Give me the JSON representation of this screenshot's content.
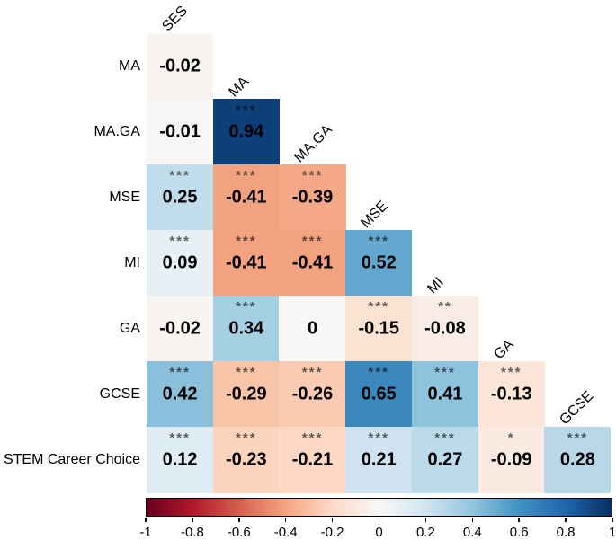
{
  "chart_data": {
    "type": "heatmap",
    "subtype": "lower-triangle correlation matrix with significance stars",
    "title": "",
    "variables": [
      "SES",
      "MA",
      "MA.GA",
      "MSE",
      "MI",
      "GA",
      "GCSE",
      "STEM Career Choice"
    ],
    "column_headers": [
      "SES",
      "MA",
      "MA.GA",
      "MSE",
      "MI",
      "GA",
      "GCSE"
    ],
    "rows": [
      {
        "label": "MA",
        "cells": [
          {
            "col": "SES",
            "value": -0.02,
            "display": "-0.02",
            "stars": ""
          }
        ]
      },
      {
        "label": "MA.GA",
        "cells": [
          {
            "col": "SES",
            "value": -0.01,
            "display": "-0.01",
            "stars": ""
          },
          {
            "col": "MA",
            "value": 0.94,
            "display": "0.94",
            "stars": "***"
          }
        ]
      },
      {
        "label": "MSE",
        "cells": [
          {
            "col": "SES",
            "value": 0.25,
            "display": "0.25",
            "stars": "***"
          },
          {
            "col": "MA",
            "value": -0.41,
            "display": "-0.41",
            "stars": "***"
          },
          {
            "col": "MA.GA",
            "value": -0.39,
            "display": "-0.39",
            "stars": "***"
          }
        ]
      },
      {
        "label": "MI",
        "cells": [
          {
            "col": "SES",
            "value": 0.09,
            "display": "0.09",
            "stars": "***"
          },
          {
            "col": "MA",
            "value": -0.41,
            "display": "-0.41",
            "stars": "***"
          },
          {
            "col": "MA.GA",
            "value": -0.41,
            "display": "-0.41",
            "stars": "***"
          },
          {
            "col": "MSE",
            "value": 0.52,
            "display": "0.52",
            "stars": "***"
          }
        ]
      },
      {
        "label": "GA",
        "cells": [
          {
            "col": "SES",
            "value": -0.02,
            "display": "-0.02",
            "stars": ""
          },
          {
            "col": "MA",
            "value": 0.34,
            "display": "0.34",
            "stars": "***"
          },
          {
            "col": "MA.GA",
            "value": 0,
            "display": "0",
            "stars": ""
          },
          {
            "col": "MSE",
            "value": -0.15,
            "display": "-0.15",
            "stars": "***"
          },
          {
            "col": "MI",
            "value": -0.08,
            "display": "-0.08",
            "stars": "**"
          }
        ]
      },
      {
        "label": "GCSE",
        "cells": [
          {
            "col": "SES",
            "value": 0.42,
            "display": "0.42",
            "stars": "***"
          },
          {
            "col": "MA",
            "value": -0.29,
            "display": "-0.29",
            "stars": "***"
          },
          {
            "col": "MA.GA",
            "value": -0.26,
            "display": "-0.26",
            "stars": "***"
          },
          {
            "col": "MSE",
            "value": 0.65,
            "display": "0.65",
            "stars": "***"
          },
          {
            "col": "MI",
            "value": 0.41,
            "display": "0.41",
            "stars": "***"
          },
          {
            "col": "GA",
            "value": -0.13,
            "display": "-0.13",
            "stars": "***"
          }
        ]
      },
      {
        "label": "STEM Career Choice",
        "cells": [
          {
            "col": "SES",
            "value": 0.12,
            "display": "0.12",
            "stars": "***"
          },
          {
            "col": "MA",
            "value": -0.23,
            "display": "-0.23",
            "stars": "***"
          },
          {
            "col": "MA.GA",
            "value": -0.21,
            "display": "-0.21",
            "stars": "***"
          },
          {
            "col": "MSE",
            "value": 0.21,
            "display": "0.21",
            "stars": "***"
          },
          {
            "col": "MI",
            "value": 0.27,
            "display": "0.27",
            "stars": "***"
          },
          {
            "col": "GA",
            "value": -0.09,
            "display": "-0.09",
            "stars": "*"
          },
          {
            "col": "GCSE",
            "value": 0.28,
            "display": "0.28",
            "stars": "***"
          }
        ]
      }
    ],
    "colorbar": {
      "orientation": "horizontal",
      "position": "bottom",
      "min": -1,
      "max": 1,
      "tick_labels": [
        "-1",
        "-0.8",
        "-0.6",
        "-0.4",
        "-0.2",
        "0",
        "0.2",
        "0.4",
        "0.6",
        "0.8",
        "1"
      ]
    },
    "colormap": {
      "name": "RdBu",
      "stops": [
        "#67001f",
        "#b2182b",
        "#d6604d",
        "#f4a582",
        "#fddbc7",
        "#f7f7f7",
        "#d1e5f0",
        "#92c5de",
        "#4393c3",
        "#2166ac",
        "#053061"
      ]
    },
    "colors": {
      "value_text": "#000000",
      "stars_text": "rgba(0,0,0,0.6)",
      "label_text": "#000000",
      "background": "#ffffff",
      "colorbar_border": "#000000"
    }
  }
}
